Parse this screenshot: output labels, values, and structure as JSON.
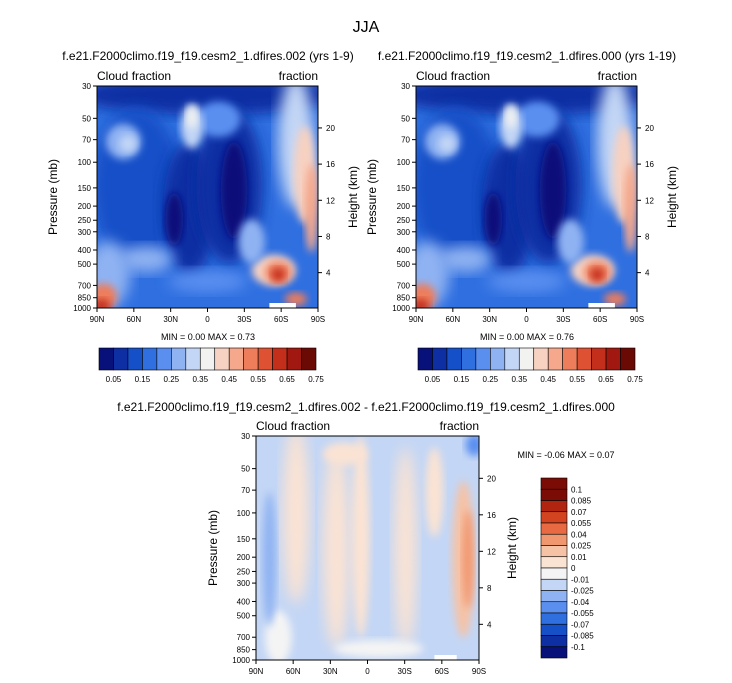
{
  "title": "JJA",
  "colors": {
    "cbar_full": [
      "#08107a",
      "#0d2fa3",
      "#1550c8",
      "#2f6fe0",
      "#5a8ff0",
      "#8fb2f2",
      "#c3d6f5",
      "#f2f2f0",
      "#f7d1c1",
      "#f5a88c",
      "#ee7d5c",
      "#de5233",
      "#c42f1c",
      "#a0180f",
      "#6b0a05"
    ],
    "cbar_diff": [
      "#08107a",
      "#0d2fa3",
      "#1550c8",
      "#2f6fe0",
      "#5a8ff0",
      "#8fb2f2",
      "#c3d6f5",
      "#f4f4f4",
      "#fbe3d3",
      "#f6c2a6",
      "#f1976f",
      "#e76a42",
      "#d4431f",
      "#b12410",
      "#7a0c05"
    ]
  },
  "chart_data": [
    {
      "type": "heatmap",
      "title": "f.e21.F2000climo.f19_f19.cesm2_1.dfires.002 (yrs 1-9)",
      "subtitle_left": "Cloud fraction",
      "subtitle_right": "fraction",
      "xlabel": "",
      "ylabel_left": "Pressure (mb)",
      "ylabel_right": "Height (km)",
      "xticks": [
        "90N",
        "60N",
        "30N",
        "0",
        "30S",
        "60S",
        "90S"
      ],
      "yticks_pressure": [
        "30",
        "50",
        "70",
        "100",
        "150",
        "200",
        "250",
        "300",
        "400",
        "500",
        "700",
        "850",
        "1000"
      ],
      "yticks_height": [
        "20",
        "16",
        "12",
        "8",
        "4"
      ],
      "stats": "MIN =  0.00   MAX =  0.73",
      "colorbar_labels": [
        "0.05",
        "0.15",
        "0.25",
        "0.35",
        "0.45",
        "0.55",
        "0.65",
        "0.75"
      ]
    },
    {
      "type": "heatmap",
      "title": "f.e21.F2000climo.f19_f19.cesm2_1.dfires.000 (yrs 1-19)",
      "subtitle_left": "Cloud fraction",
      "subtitle_right": "fraction",
      "xlabel": "",
      "ylabel_left": "Pressure (mb)",
      "ylabel_right": "Height (km)",
      "xticks": [
        "90N",
        "60N",
        "30N",
        "0",
        "30S",
        "60S",
        "90S"
      ],
      "yticks_pressure": [
        "30",
        "50",
        "70",
        "100",
        "150",
        "200",
        "250",
        "300",
        "400",
        "500",
        "700",
        "850",
        "1000"
      ],
      "yticks_height": [
        "20",
        "16",
        "12",
        "8",
        "4"
      ],
      "stats": "MIN =  0.00   MAX =  0.76",
      "colorbar_labels": [
        "0.05",
        "0.15",
        "0.25",
        "0.35",
        "0.45",
        "0.55",
        "0.65",
        "0.75"
      ]
    },
    {
      "type": "heatmap",
      "title": "f.e21.F2000climo.f19_f19.cesm2_1.dfires.002 - f.e21.F2000climo.f19_f19.cesm2_1.dfires.000",
      "subtitle_left": "Cloud fraction",
      "subtitle_right": "fraction",
      "xlabel": "",
      "ylabel_left": "Pressure (mb)",
      "ylabel_right": "Height (km)",
      "xticks": [
        "90N",
        "60N",
        "30N",
        "0",
        "30S",
        "60S",
        "90S"
      ],
      "yticks_pressure": [
        "30",
        "50",
        "70",
        "100",
        "150",
        "200",
        "250",
        "300",
        "400",
        "500",
        "700",
        "850",
        "1000"
      ],
      "yticks_height": [
        "20",
        "16",
        "12",
        "8",
        "4"
      ],
      "stats": "MIN = -0.06   MAX =  0.07",
      "colorbar_labels": [
        "0.1",
        "0.085",
        "0.07",
        "0.055",
        "0.04",
        "0.025",
        "0.01",
        "0",
        "-0.01",
        "-0.025",
        "-0.04",
        "-0.055",
        "-0.07",
        "-0.085",
        "-0.1"
      ]
    }
  ]
}
